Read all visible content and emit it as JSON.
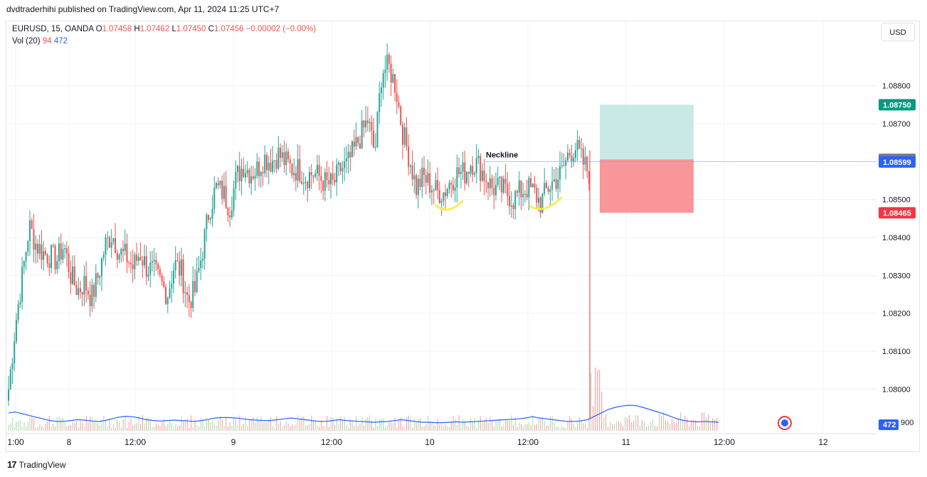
{
  "header": {
    "publish_line": "dvdtraderhihi published on TradingView.com, Apr 11, 2024 11:25 UTC+7"
  },
  "legend": {
    "symbol": "EURUSD, 15, OANDA",
    "o_label": "O",
    "o": "1.07458",
    "h_label": "H",
    "h": "1.07462",
    "l_label": "L",
    "l": "1.07450",
    "c_label": "C",
    "c": "1.07456",
    "change": "−0.00002 (−0.00%)",
    "vol_label": "Vol (20)",
    "vol_a": "94",
    "vol_b": "472"
  },
  "currency_button": "USD",
  "footer": {
    "brand": "TradingView",
    "logo_glyph": "17"
  },
  "colors": {
    "up": "#26a69a",
    "down": "#ef5350",
    "vol_ma": "#2962ff",
    "tp_zone": "#b2dfdb",
    "sl_zone": "#f77c80"
  },
  "chart_data": {
    "type": "candlestick",
    "symbol": "EURUSD",
    "timeframe": "15",
    "ylim": [
      1.0789,
      1.0897
    ],
    "price_ticks": [
      "1.08800",
      "1.08700",
      "1.08500",
      "1.08400",
      "1.08300",
      "1.08200",
      "1.08100",
      "1.08000"
    ],
    "x_tick_labels": [
      "1:00",
      "8",
      "12:00",
      "9",
      "12:00",
      "10",
      "12:00",
      "11",
      "12:00",
      "12"
    ],
    "price_labels": [
      {
        "text": "1.08750",
        "value": 1.0875,
        "color": "#089981"
      },
      {
        "text": "1.08606",
        "value": 1.08606,
        "color": "#787b86"
      },
      {
        "text": "1.08599",
        "value": 1.08599,
        "color": "#2962ff"
      },
      {
        "text": "1.08465",
        "value": 1.08465,
        "color": "#f23645"
      }
    ],
    "volume_label": "472",
    "partial_tick_label": "900",
    "annotation": "Neckline",
    "neckline_price": 1.086,
    "long_position": {
      "entry": 1.08606,
      "take_profit": 1.0875,
      "stop_loss": 1.08465
    },
    "price_path": [
      1.08,
      1.0817,
      1.083,
      1.0843,
      1.0838,
      1.0836,
      1.0835,
      1.0834,
      1.0838,
      1.083,
      1.0826,
      1.0828,
      1.0824,
      1.083,
      1.0838,
      1.0841,
      1.0836,
      1.0835,
      1.0832,
      1.0836,
      1.0832,
      1.0831,
      1.0828,
      1.0825,
      1.0833,
      1.0831,
      1.0823,
      1.0826,
      1.0836,
      1.0847,
      1.0853,
      1.0852,
      1.0848,
      1.0856,
      1.0859,
      1.0857,
      1.0858,
      1.0861,
      1.086,
      1.0862,
      1.086,
      1.0858,
      1.0858,
      1.0856,
      1.0857,
      1.0856,
      1.0854,
      1.0854,
      1.0858,
      1.0859,
      1.0863,
      1.0867,
      1.0871,
      1.0862,
      1.0884,
      1.0885,
      1.088,
      1.0868,
      1.0861,
      1.0853,
      1.0856,
      1.0854,
      1.0852,
      1.0852,
      1.0855,
      1.0857,
      1.0857,
      1.086,
      1.0859,
      1.0856,
      1.0853,
      1.0853,
      1.0852,
      1.085,
      1.0852,
      1.0853,
      1.0852,
      1.0849,
      1.0853,
      1.0855,
      1.0857,
      1.0862,
      1.0864,
      1.086,
      1.0857
    ],
    "volume_ma": [
      0.42,
      0.44,
      0.4,
      0.36,
      0.32,
      0.28,
      0.24,
      0.22,
      0.22,
      0.24,
      0.26,
      0.25,
      0.23,
      0.22,
      0.24,
      0.28,
      0.32,
      0.34,
      0.33,
      0.3,
      0.26,
      0.24,
      0.23,
      0.24,
      0.25,
      0.24,
      0.23,
      0.22,
      0.24,
      0.27,
      0.3,
      0.31,
      0.31,
      0.3,
      0.28,
      0.26,
      0.25,
      0.24,
      0.24,
      0.26,
      0.28,
      0.3,
      0.28,
      0.26,
      0.24,
      0.22,
      0.22,
      0.24,
      0.26,
      0.24,
      0.23,
      0.22,
      0.21,
      0.2,
      0.21,
      0.22,
      0.24,
      0.26,
      0.24,
      0.22,
      0.2,
      0.2,
      0.19,
      0.19,
      0.2,
      0.21,
      0.2,
      0.21,
      0.22,
      0.23,
      0.24,
      0.25,
      0.26,
      0.27,
      0.28,
      0.3,
      0.33,
      0.3,
      0.28,
      0.26,
      0.24,
      0.22,
      0.22,
      0.23,
      0.26,
      0.34,
      0.42,
      0.5,
      0.55,
      0.58,
      0.6,
      0.59,
      0.55,
      0.5,
      0.45,
      0.4,
      0.34,
      0.28,
      0.24,
      0.22,
      0.21,
      0.22,
      0.21,
      0.2
    ]
  }
}
